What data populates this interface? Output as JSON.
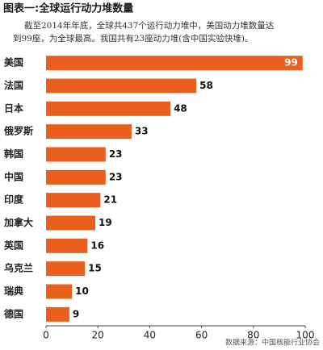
{
  "chart_data": {
    "type": "bar",
    "orientation": "horizontal",
    "title": "图表一:全球运行动力堆数量",
    "subtitle": [
      "截至2014年年底，全球共437个运行动力堆中，美国动力堆数量达",
      "到99座，为全球最高。我国共有23座动力堆(含中国实验快堆)。"
    ],
    "categories": [
      "美国",
      "法国",
      "日本",
      "俄罗斯",
      "韩国",
      "中国",
      "印度",
      "加拿大",
      "英国",
      "乌克兰",
      "瑞典",
      "德国"
    ],
    "values": [
      99,
      58,
      48,
      33,
      23,
      23,
      21,
      19,
      16,
      15,
      10,
      9
    ],
    "color": "#e9601e",
    "xlim": [
      0,
      100
    ],
    "xticks": [
      0,
      20,
      40,
      60,
      80,
      100
    ],
    "grid": false,
    "source": "数据来源：中国核能行业协会"
  }
}
